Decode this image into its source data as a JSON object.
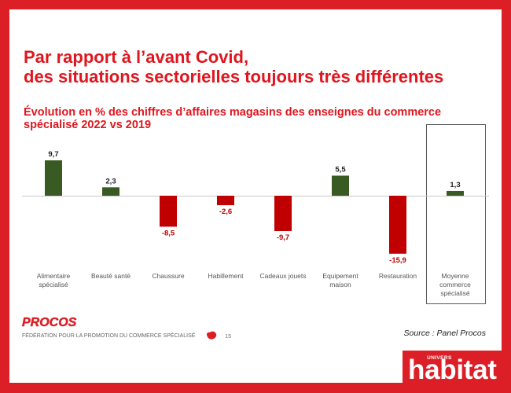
{
  "slide": {
    "title_lines": [
      "Par rapport à l’avant Covid,",
      "des situations sectorielles toujours très différentes"
    ],
    "source": "Source : Panel Procos"
  },
  "footer": {
    "logo": "PROCOS",
    "tagline": "FÉDÉRATION POUR LA PROMOTION DU COMMERCE SPÉCIALISÉ",
    "mark_icon": "red-blob-icon",
    "page_number": "15"
  },
  "brand_logo": {
    "small_text": "UNIVERS",
    "name": "habitat"
  },
  "colors": {
    "frame": "#dc1f26",
    "title": "#e0161e",
    "positive_bar": "#3a5a24",
    "negative_bar": "#c00000",
    "positive_label": "#222222",
    "negative_label": "#c00000"
  },
  "chart_data": {
    "type": "bar",
    "title": "Évolution en % des chiffres d’affaires magasins des enseignes du commerce spécialisé 2022 vs 2019",
    "categories": [
      "Alimentaire spécialisé",
      "Beauté santé",
      "Chaussure",
      "Habillement",
      "Cadeaux jouets",
      "Equipement maison",
      "Restauration",
      "Moyenne commerce spécialisé"
    ],
    "values": [
      9.7,
      2.3,
      -8.5,
      -2.6,
      -9.7,
      5.5,
      -15.9,
      1.3
    ],
    "data_labels": [
      "9,7",
      "2,3",
      "-8,5",
      "-2,6",
      "-9,7",
      "5,5",
      "-15,9",
      "1,3"
    ],
    "grid": false
  }
}
